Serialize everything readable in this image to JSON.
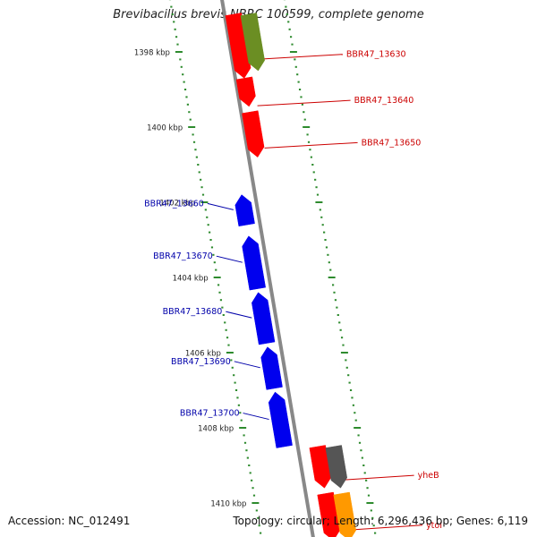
{
  "title": "Brevibacillus brevis NBRC 100599, complete genome",
  "accession": "Accession: NC_012491",
  "summary": "Topology: circular; Length: 6,296,436 bp; Genes: 6,119",
  "colors": {
    "backbone": "#888888",
    "ticks": "#2e8b2e",
    "red_gene": "#ff0000",
    "blue_gene": "#0000ee",
    "olive_gene": "#6b8e23",
    "gray_gene": "#555555",
    "orange_gene": "#ff9900",
    "red_label": "#cc0000",
    "blue_label": "#0000aa"
  },
  "ticks": [
    {
      "label": "1398 kbp",
      "kbp": 1398
    },
    {
      "label": "1400 kbp",
      "kbp": 1400
    },
    {
      "label": "1402 kbp",
      "kbp": 1402
    },
    {
      "label": "1404 kbp",
      "kbp": 1404
    },
    {
      "label": "1406 kbp",
      "kbp": 1406
    },
    {
      "label": "1408 kbp",
      "kbp": 1408
    },
    {
      "label": "1410 kbp",
      "kbp": 1410
    }
  ],
  "genes": [
    {
      "name": "BBR47_13630",
      "strand": "forward",
      "color": "red_gene",
      "start_kbp": 1397.0,
      "end_kbp": 1398.7
    },
    {
      "name": "BBR47_13640",
      "strand": "forward",
      "color": "red_gene",
      "start_kbp": 1398.7,
      "end_kbp": 1399.45
    },
    {
      "name": "BBR47_13650",
      "strand": "forward",
      "color": "red_gene",
      "start_kbp": 1399.6,
      "end_kbp": 1400.8
    },
    {
      "name": "",
      "strand": "forward",
      "color": "olive_gene",
      "start_kbp": 1397.0,
      "end_kbp": 1398.5
    },
    {
      "name": "BBR47_13660",
      "strand": "reverse",
      "color": "blue_gene",
      "start_kbp": 1401.8,
      "end_kbp": 1402.6
    },
    {
      "name": "BBR47_13670",
      "strand": "reverse",
      "color": "blue_gene",
      "start_kbp": 1402.9,
      "end_kbp": 1404.3
    },
    {
      "name": "BBR47_13680",
      "strand": "reverse",
      "color": "blue_gene",
      "start_kbp": 1404.4,
      "end_kbp": 1405.75
    },
    {
      "name": "BBR47_13690",
      "strand": "reverse",
      "color": "blue_gene",
      "start_kbp": 1405.85,
      "end_kbp": 1406.95
    },
    {
      "name": "BBR47_13700",
      "strand": "reverse",
      "color": "blue_gene",
      "start_kbp": 1407.05,
      "end_kbp": 1408.5
    },
    {
      "name": "yheB",
      "strand": "forward",
      "color": "red_gene",
      "start_kbp": 1408.5,
      "end_kbp": 1409.6
    },
    {
      "name": "",
      "strand": "forward",
      "color": "gray_gene",
      "start_kbp": 1408.5,
      "end_kbp": 1409.6
    },
    {
      "name": "ytoI",
      "strand": "forward",
      "color": "red_gene",
      "start_kbp": 1409.75,
      "end_kbp": 1411.0
    },
    {
      "name": "",
      "strand": "forward",
      "color": "orange_gene",
      "start_kbp": 1409.75,
      "end_kbp": 1411.0
    }
  ]
}
